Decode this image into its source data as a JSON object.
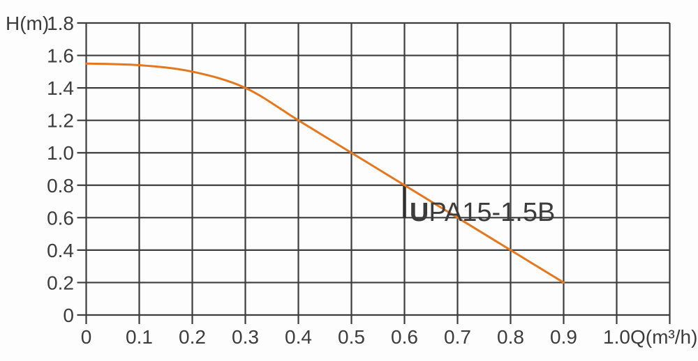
{
  "page": {
    "background": "#fdfdfd"
  },
  "colors": {
    "grid": "#3d3d3d",
    "axis": "#3d3d3d",
    "text": "#3c3c3c",
    "curve": "#e5771e",
    "marker": "#2e2e2e",
    "model_text": "#3a3a3a"
  },
  "labels": {
    "y_axis": "H(m)",
    "x_axis": "Q(m³/h)",
    "model_bold": "U",
    "model_rest": "PA15-1.5B",
    "model_full": "UPA15-1.5B"
  },
  "chart_data": {
    "type": "line",
    "title": "",
    "xlabel": "Q(m³/h)",
    "ylabel": "H(m)",
    "xlim": [
      0,
      1.1
    ],
    "ylim": [
      0,
      1.8
    ],
    "grid": true,
    "x_ticks": [
      "0",
      "0.1",
      "0.2",
      "0.3",
      "0.4",
      "0.5",
      "0.6",
      "0.7",
      "0.8",
      "0.9",
      "1.0"
    ],
    "y_ticks": [
      "0",
      "0.2",
      "0.4",
      "0.6",
      "0.8",
      "1.0",
      "1.2",
      "1.4",
      "1.6",
      "1.8"
    ],
    "series": [
      {
        "name": "UPA15-1.5B",
        "x": [
          0,
          0.1,
          0.2,
          0.3,
          0.4,
          0.5,
          0.6,
          0.7,
          0.8,
          0.9
        ],
        "values": [
          1.55,
          1.54,
          1.5,
          1.4,
          1.2,
          1.0,
          0.8,
          0.6,
          0.4,
          0.2
        ]
      }
    ],
    "annotations": [
      {
        "label": "UPA15-1.5B",
        "q": 0.715,
        "h": 0.64
      }
    ],
    "duty_marker": {
      "q": 0.6,
      "h_from": 0.6,
      "h_to": 0.8
    }
  }
}
